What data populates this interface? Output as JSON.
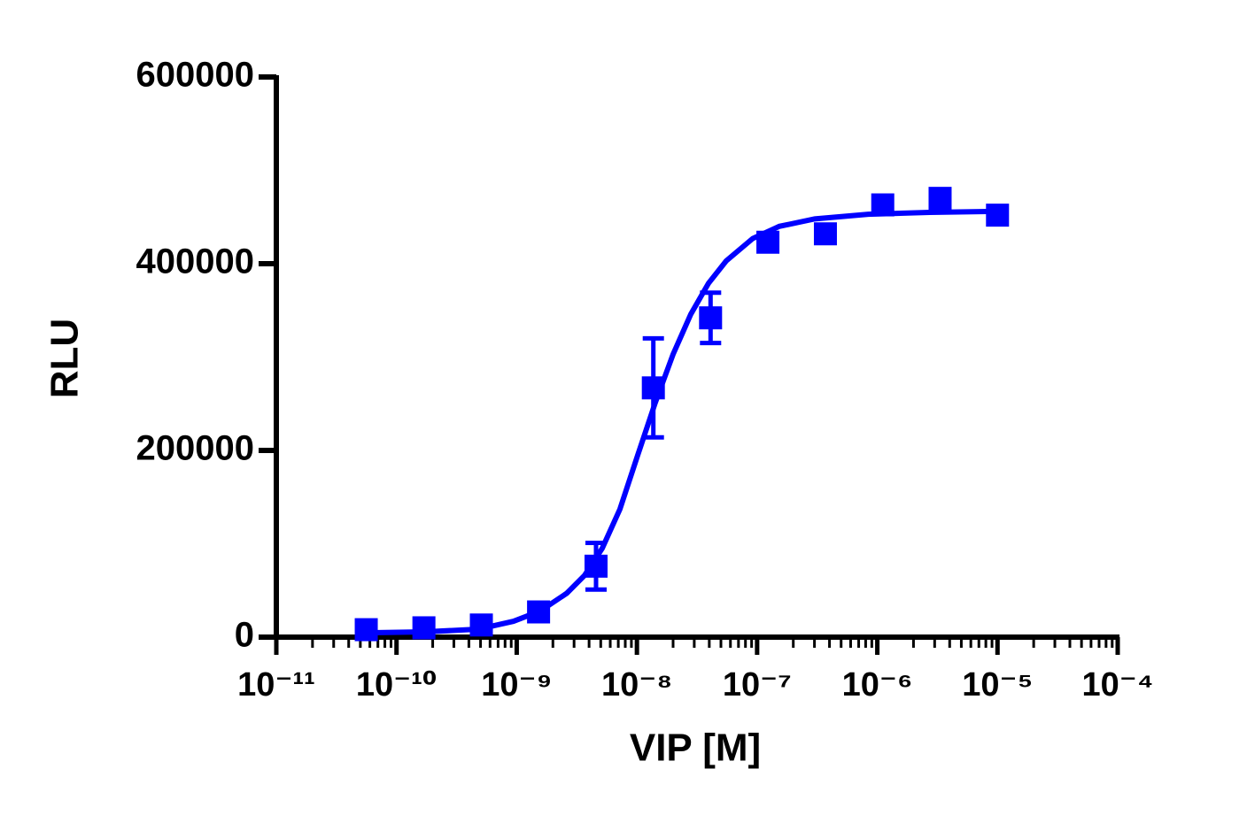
{
  "chart_data": {
    "type": "scatter",
    "x_label": "VIP [M]",
    "y_label": "RLU",
    "xscale": "log",
    "xlim": [
      1e-11,
      0.0001
    ],
    "xticks": [
      {
        "value": 1e-11,
        "label": "10⁻¹¹"
      },
      {
        "value": 1e-10,
        "label": "10⁻¹⁰"
      },
      {
        "value": 1e-09,
        "label": "10⁻⁹"
      },
      {
        "value": 1e-08,
        "label": "10⁻⁸"
      },
      {
        "value": 1e-07,
        "label": "10⁻⁷"
      },
      {
        "value": 1e-06,
        "label": "10⁻⁶"
      },
      {
        "value": 1e-05,
        "label": "10⁻⁵"
      },
      {
        "value": 0.0001,
        "label": "10⁻⁴"
      }
    ],
    "minor_ticks": true,
    "ylim": [
      0,
      600000
    ],
    "yticks": [
      0,
      200000,
      400000,
      600000
    ],
    "series": [
      {
        "color": "#0000ff",
        "x": [
          5.6e-11,
          1.69e-10,
          5.08e-10,
          1.52e-09,
          4.57e-09,
          1.37e-08,
          4.1e-08,
          1.23e-07,
          3.7e-07,
          1.11e-06,
          3.33e-06,
          1e-05
        ],
        "values": [
          8000,
          10000,
          13000,
          27000,
          76000,
          267000,
          342000,
          423000,
          432000,
          463000,
          470000,
          452000
        ],
        "errors": [
          null,
          null,
          null,
          null,
          25000,
          53000,
          27000,
          null,
          null,
          null,
          null,
          null
        ]
      }
    ],
    "fit": {
      "color": "#0000ff",
      "x": [
        6.25e-11,
        1.73e-10,
        4.79e-10,
        9.4e-10,
        1.57e-09,
        2.61e-09,
        3.66e-09,
        5.14e-09,
        7.22e-09,
        1.01e-08,
        1.42e-08,
        2e-08,
        2.81e-08,
        3.94e-08,
        5.53e-08,
        9.2e-08,
        1.53e-07,
        3.02e-07,
        8.4e-07,
        2.74e-06,
        9.6e-06
      ],
      "values": [
        4700,
        5700,
        8500,
        17000,
        28000,
        47000,
        66000,
        95000,
        137000,
        194000,
        251000,
        303000,
        346000,
        379000,
        403000,
        427000,
        440000,
        448000,
        453000,
        455000,
        456000
      ]
    }
  }
}
